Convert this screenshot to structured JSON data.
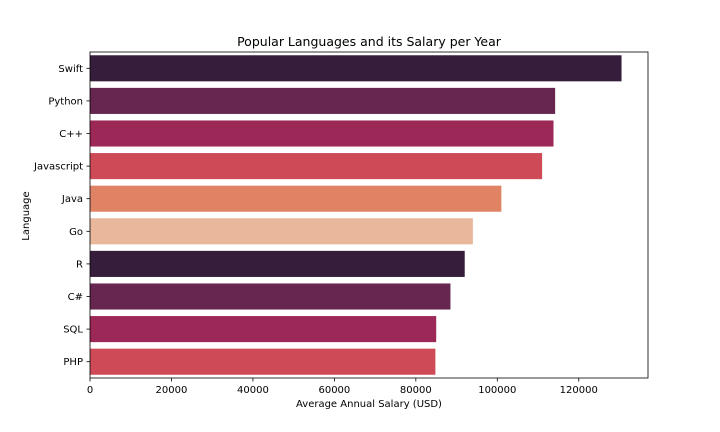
{
  "chart_data": {
    "type": "bar",
    "orientation": "horizontal",
    "title": "Popular Languages and its Salary per Year",
    "xlabel": "Average Annual Salary (USD)",
    "ylabel": "Language",
    "categories": [
      "Swift",
      "Python",
      "C++",
      "Javascript",
      "Java",
      "Go",
      "R",
      "C#",
      "SQL",
      "PHP"
    ],
    "values": [
      130500,
      114200,
      113800,
      111000,
      101000,
      94000,
      92000,
      88500,
      85000,
      84800
    ],
    "xlim": [
      0,
      137000
    ],
    "xticks": [
      0,
      20000,
      40000,
      60000,
      80000,
      100000,
      120000
    ],
    "xtick_labels": [
      "0",
      "20000",
      "40000",
      "60000",
      "80000",
      "100000",
      "120000"
    ],
    "colors": [
      "#351d3b",
      "#66264f",
      "#9c2858",
      "#cd4a56",
      "#e08264",
      "#e9b79b",
      "#351d3b",
      "#66264f",
      "#9c2858",
      "#cd4a56"
    ],
    "grid": false,
    "legend": "none"
  }
}
